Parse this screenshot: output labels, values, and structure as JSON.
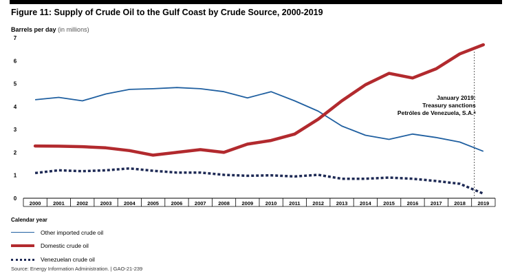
{
  "figure": {
    "title": "Figure 11: Supply of Crude Oil to the Gulf Coast by Crude Source, 2000-2019",
    "source": "Source: Energy Information Administration.  |  GAO-21-239"
  },
  "chart_data": {
    "type": "line",
    "title": "Figure 11: Supply of Crude Oil to the Gulf Coast by Crude Source, 2000-2019",
    "ylabel_main": "Barrels per day",
    "ylabel_unit": "(in millions)",
    "xlabel": "Calendar year",
    "ylim": [
      0,
      7
    ],
    "yticks": [
      "0",
      "1",
      "2",
      "3",
      "4",
      "5",
      "6",
      "7"
    ],
    "categories": [
      "2000",
      "2001",
      "2002",
      "2003",
      "2004",
      "2005",
      "2006",
      "2007",
      "2008",
      "2009",
      "2010",
      "2011",
      "2012",
      "2013",
      "2014",
      "2015",
      "2016",
      "2017",
      "2018",
      "2019"
    ],
    "grid": false,
    "legend_position": "bottom-left",
    "series": [
      {
        "name": "Other imported crude oil",
        "color": "#1f5fa0",
        "style": "solid",
        "values": [
          4.3,
          4.4,
          4.25,
          4.55,
          4.75,
          4.78,
          4.83,
          4.78,
          4.65,
          4.38,
          4.65,
          4.25,
          3.8,
          3.15,
          2.75,
          2.57,
          2.8,
          2.65,
          2.45,
          2.05
        ]
      },
      {
        "name": "Domestic crude oil",
        "color": "#b22a2e",
        "style": "solid-thick",
        "values": [
          2.28,
          2.27,
          2.25,
          2.2,
          2.08,
          1.88,
          2.0,
          2.12,
          2.0,
          2.36,
          2.52,
          2.8,
          3.45,
          4.25,
          4.95,
          5.45,
          5.25,
          5.65,
          6.3,
          6.7
        ]
      },
      {
        "name": "Venezuelan crude oil",
        "color": "#1e2a55",
        "style": "dotted",
        "values": [
          1.1,
          1.22,
          1.18,
          1.22,
          1.3,
          1.2,
          1.12,
          1.12,
          1.02,
          0.98,
          1.0,
          0.95,
          1.02,
          0.85,
          0.85,
          0.9,
          0.85,
          0.75,
          0.63,
          0.2
        ]
      }
    ],
    "annotation": {
      "x": "2019",
      "lines": [
        "January 2019:",
        "Treasury sanctions",
        "Petróles de Venezuela, S.A.ᵃ"
      ]
    }
  }
}
